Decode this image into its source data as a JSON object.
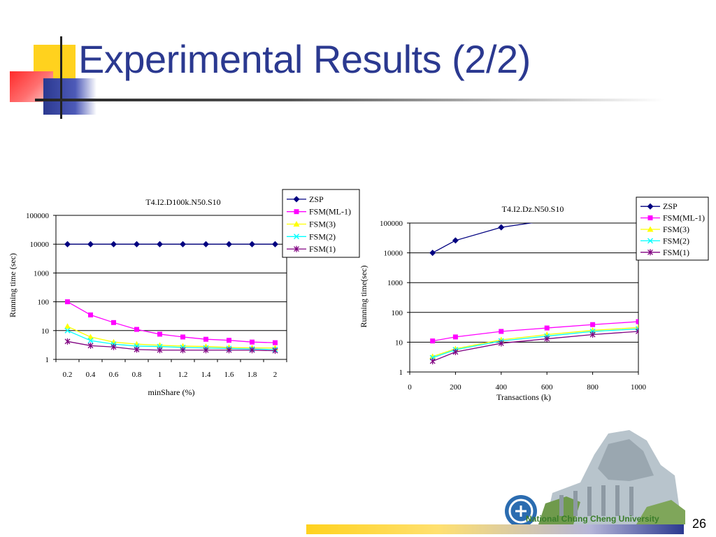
{
  "slide": {
    "title": "Experimental Results (2/2)",
    "page_number": "26",
    "footer_university": "National Chung Cheng University"
  },
  "colors": {
    "title": "#2b3990",
    "ZSP": "#000080",
    "FSM(ML-1)": "#ff00ff",
    "FSM(3)": "#ffff00",
    "FSM(2)": "#00ffff",
    "FSM(1)": "#800080"
  },
  "chart_data": [
    {
      "type": "line",
      "title": "T4.I2.D100k.N50.S10",
      "xlabel": "minShare (%)",
      "ylabel": "Running time (sec)",
      "yscale": "log",
      "ylim": [
        1,
        100000
      ],
      "yticks": [
        "1",
        "10",
        "100",
        "1000",
        "10000",
        "100000"
      ],
      "categories": [
        "0.2",
        "0.4",
        "0.6",
        "0.8",
        "1",
        "1.2",
        "1.4",
        "1.6",
        "1.8",
        "2"
      ],
      "grid": "horizontal",
      "legend_position": "top-right",
      "series": [
        {
          "name": "ZSP",
          "marker": "diamond",
          "values": [
            10000,
            10000,
            10000,
            10000,
            10000,
            10000,
            10000,
            10000,
            10000,
            10000
          ]
        },
        {
          "name": "FSM(ML-1)",
          "marker": "square",
          "values": [
            100,
            35,
            19,
            11,
            7.5,
            6,
            5,
            4.6,
            4,
            3.8
          ]
        },
        {
          "name": "FSM(3)",
          "marker": "triangle",
          "values": [
            14,
            6,
            4,
            3.4,
            3.1,
            2.9,
            2.8,
            2.6,
            2.5,
            2.5
          ]
        },
        {
          "name": "FSM(2)",
          "marker": "x",
          "values": [
            10,
            4.5,
            3.4,
            2.9,
            2.8,
            2.6,
            2.5,
            2.4,
            2.3,
            2.2
          ]
        },
        {
          "name": "FSM(1)",
          "marker": "star",
          "values": [
            4.2,
            3,
            2.7,
            2.2,
            2.1,
            2.1,
            2.1,
            2.1,
            2.1,
            2
          ]
        }
      ]
    },
    {
      "type": "line",
      "title": "T4.I2.Dz.N50.S10",
      "xlabel": "Transactions (k)",
      "ylabel": "Running time(sec)",
      "yscale": "log",
      "ylim": [
        1,
        100000
      ],
      "yticks": [
        "1",
        "10",
        "100",
        "1000",
        "10000",
        "100000"
      ],
      "xlim": [
        0,
        1000
      ],
      "xticks": [
        "0",
        "200",
        "400",
        "600",
        "800",
        "1000"
      ],
      "grid": "horizontal",
      "legend_position": "top-right",
      "series": [
        {
          "name": "ZSP",
          "marker": "diamond",
          "x": [
            100,
            200,
            400,
            600
          ],
          "values": [
            10000,
            26000,
            72000,
            120000
          ]
        },
        {
          "name": "FSM(ML-1)",
          "marker": "square",
          "x": [
            100,
            200,
            400,
            600,
            800,
            1000
          ],
          "values": [
            11,
            15,
            23,
            30,
            39,
            49
          ]
        },
        {
          "name": "FSM(3)",
          "marker": "triangle",
          "x": [
            100,
            200,
            400,
            600,
            800,
            1000
          ],
          "values": [
            3.3,
            6,
            12,
            18,
            25,
            31
          ]
        },
        {
          "name": "FSM(2)",
          "marker": "x",
          "x": [
            100,
            200,
            400,
            600,
            800,
            1000
          ],
          "values": [
            3,
            5.6,
            11,
            16,
            23,
            28
          ]
        },
        {
          "name": "FSM(1)",
          "marker": "star",
          "x": [
            100,
            200,
            400,
            600,
            800,
            1000
          ],
          "values": [
            2.3,
            4.7,
            9.2,
            13,
            18,
            23
          ]
        }
      ]
    }
  ]
}
